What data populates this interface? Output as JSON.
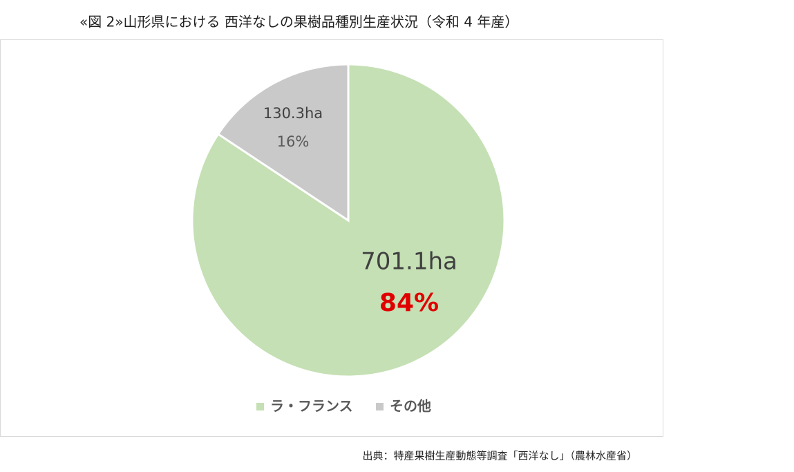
{
  "chart_data": {
    "type": "pie",
    "title": "«図 2»山形県における 西洋なしの果樹品種別生産状況（令和 4 年産）",
    "categories": [
      "ラ・フランス",
      "その他"
    ],
    "values": [
      701.1,
      130.3
    ],
    "value_labels": [
      "701.1ha",
      "130.3ha"
    ],
    "percents": [
      84,
      16
    ],
    "percent_labels": [
      "84%",
      "16%"
    ],
    "colors": [
      "#c5e0b4",
      "#c9c9c9"
    ],
    "legend": "bottom",
    "source": "出典：特産果樹生産動態等調査「西洋なし」（農林水産省）"
  }
}
